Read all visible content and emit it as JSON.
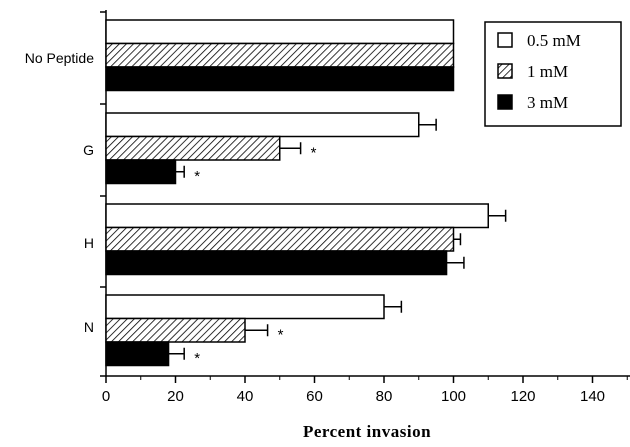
{
  "chart_data": {
    "type": "bar",
    "orientation": "horizontal",
    "categories": [
      "No Peptide",
      "G",
      "H",
      "N"
    ],
    "series": [
      {
        "name": "0.5 mM",
        "values": [
          100,
          90,
          110,
          80
        ],
        "errors": [
          0,
          5,
          5,
          5
        ],
        "significant": [
          false,
          false,
          false,
          false
        ],
        "fill": "white"
      },
      {
        "name": "1 mM",
        "values": [
          100,
          50,
          100,
          40
        ],
        "errors": [
          0,
          6,
          2,
          6.5
        ],
        "significant": [
          false,
          true,
          false,
          true
        ],
        "fill": "hatched"
      },
      {
        "name": "3 mM",
        "values": [
          100,
          20,
          98,
          18
        ],
        "errors": [
          0,
          2.5,
          5,
          4.5
        ],
        "significant": [
          false,
          true,
          false,
          true
        ],
        "fill": "black"
      }
    ],
    "xlabel": "Percent invasion",
    "ylabel": "",
    "xlim": [
      0,
      150
    ],
    "xticks": [
      "0",
      "20",
      "40",
      "60",
      "80",
      "100",
      "120",
      "140"
    ],
    "significance_marker": "*",
    "grid": false,
    "legend_position": "top-right",
    "colors": {
      "bar_outline": "#000000",
      "solid": "#000000",
      "open": "#ffffff"
    }
  }
}
